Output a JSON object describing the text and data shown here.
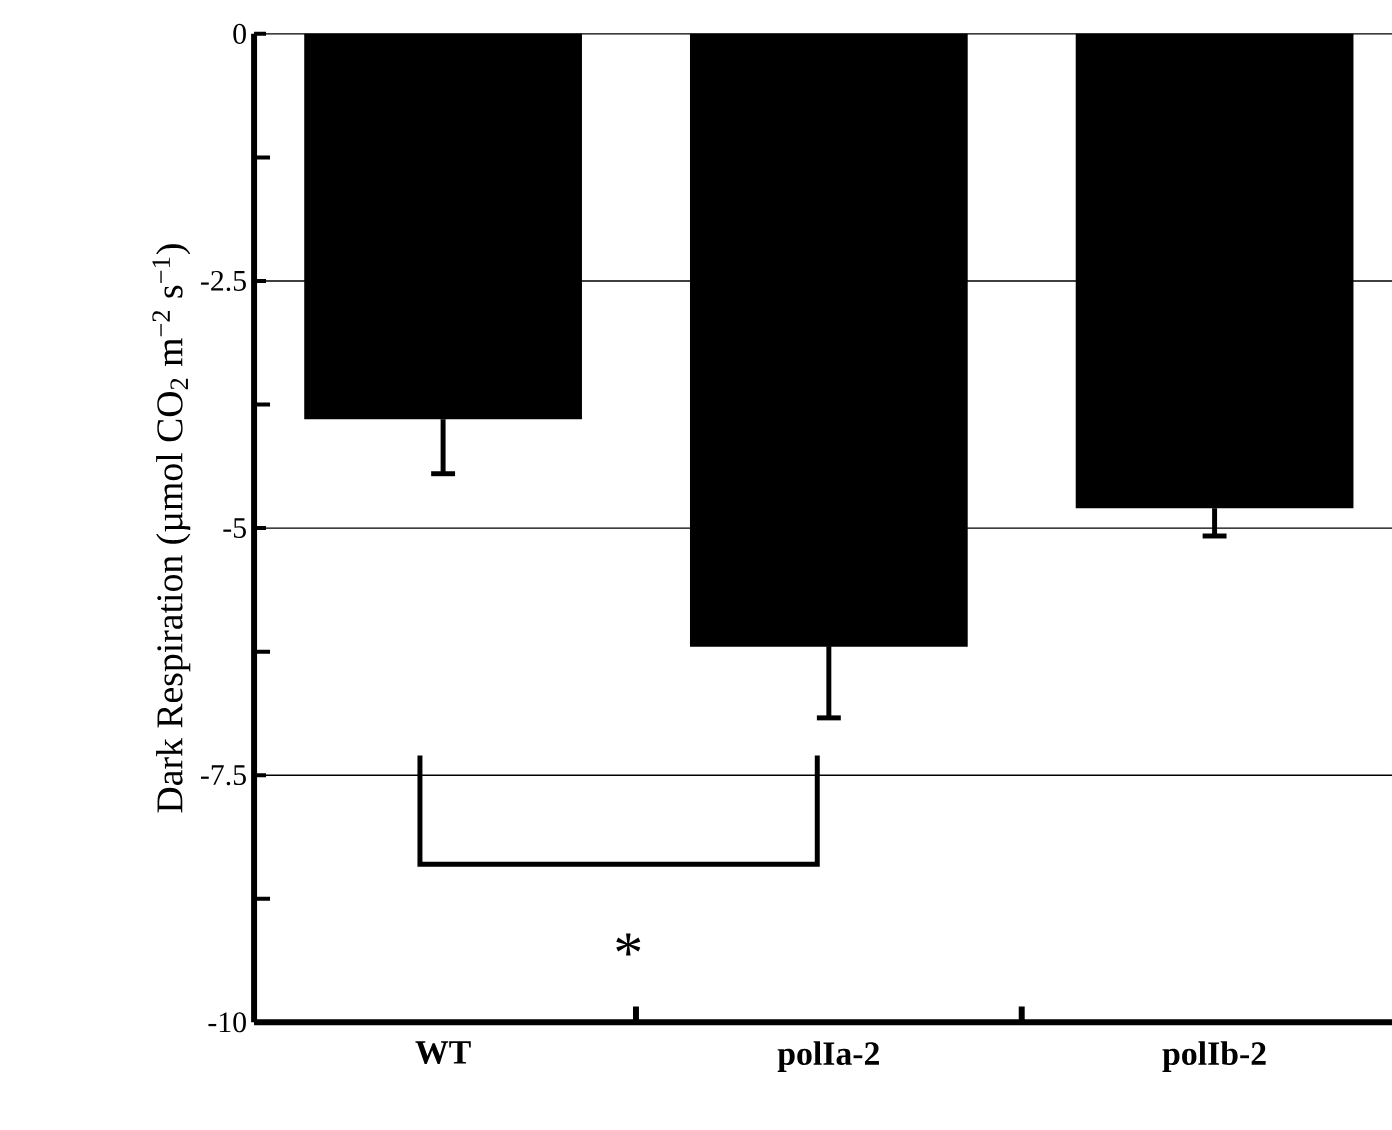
{
  "chart_data": {
    "type": "bar",
    "ylabel": "Dark Respiration (µmol CO$_{2}$ m$^{−2}$ s$^{−1}$)",
    "categories": [
      "WT",
      "polIa-2",
      "polIb-2"
    ],
    "values": [
      -3.9,
      -6.2,
      -4.8
    ],
    "errors": [
      0.55,
      0.72,
      0.28
    ],
    "color": "#000000",
    "ylim": [
      -10,
      0
    ],
    "yticks": [
      -10,
      -7.5,
      -5,
      -2.5,
      0
    ],
    "grid": "y",
    "annotations": [
      "*"
    ]
  }
}
